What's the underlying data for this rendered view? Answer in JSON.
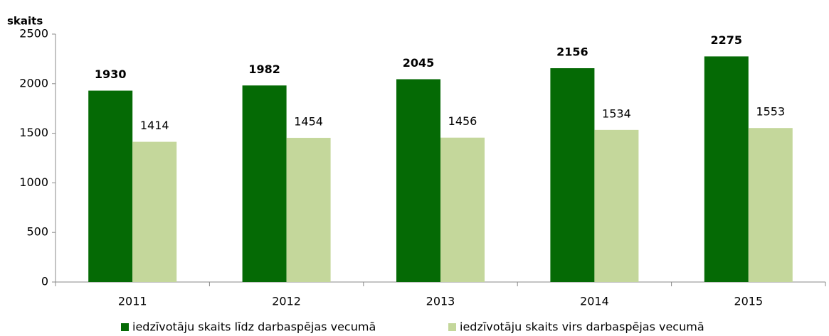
{
  "chart_data": {
    "type": "bar",
    "y_axis_label": "skaits",
    "categories": [
      "2011",
      "2012",
      "2013",
      "2014",
      "2015"
    ],
    "series": [
      {
        "name": "iedzīvotāju skaits līdz darbaspējas vecumā",
        "color": "#056a05",
        "values": [
          1930,
          1982,
          2045,
          2156,
          2275
        ]
      },
      {
        "name": "iedzīvotāju skaits virs darbaspējas vecumā",
        "color": "#c4d79b",
        "values": [
          1414,
          1454,
          1456,
          1534,
          1553
        ]
      }
    ],
    "ylim": [
      0,
      2500
    ],
    "yticks": [
      0,
      500,
      1000,
      1500,
      2000,
      2500
    ],
    "grid": false,
    "legend": "bottom"
  }
}
